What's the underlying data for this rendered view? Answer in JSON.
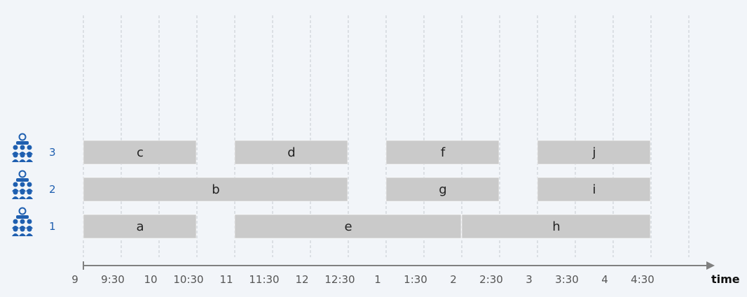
{
  "chart_data": {
    "type": "gantt",
    "xlabel": "time",
    "ticks": [
      "9",
      "9:30",
      "10",
      "10:30",
      "11",
      "11:30",
      "12",
      "12:30",
      "1",
      "1:30",
      "2",
      "2:30",
      "3",
      "3:30",
      "4",
      "4:30"
    ],
    "rooms": [
      {
        "label": "3",
        "icon": "classroom-icon"
      },
      {
        "label": "2",
        "icon": "classroom-icon"
      },
      {
        "label": "1",
        "icon": "classroom-icon"
      }
    ],
    "jobs": [
      {
        "label": "c",
        "room": "3",
        "start": "9:00",
        "end": "10:30"
      },
      {
        "label": "d",
        "room": "3",
        "start": "11:00",
        "end": "12:30"
      },
      {
        "label": "f",
        "room": "3",
        "start": "13:00",
        "end": "14:30"
      },
      {
        "label": "j",
        "room": "3",
        "start": "15:00",
        "end": "16:30"
      },
      {
        "label": "b",
        "room": "2",
        "start": "9:00",
        "end": "12:30"
      },
      {
        "label": "g",
        "room": "2",
        "start": "13:00",
        "end": "14:30"
      },
      {
        "label": "i",
        "room": "2",
        "start": "15:00",
        "end": "16:30"
      },
      {
        "label": "a",
        "room": "1",
        "start": "9:00",
        "end": "10:30"
      },
      {
        "label": "e",
        "room": "1",
        "start": "11:00",
        "end": "14:00"
      },
      {
        "label": "h",
        "room": "1",
        "start": "14:00",
        "end": "16:30"
      }
    ]
  },
  "colors": {
    "bar": "#cacaca",
    "grid": "#c4c9d0",
    "axis": "#808080",
    "icon": "#1f5fb0"
  }
}
